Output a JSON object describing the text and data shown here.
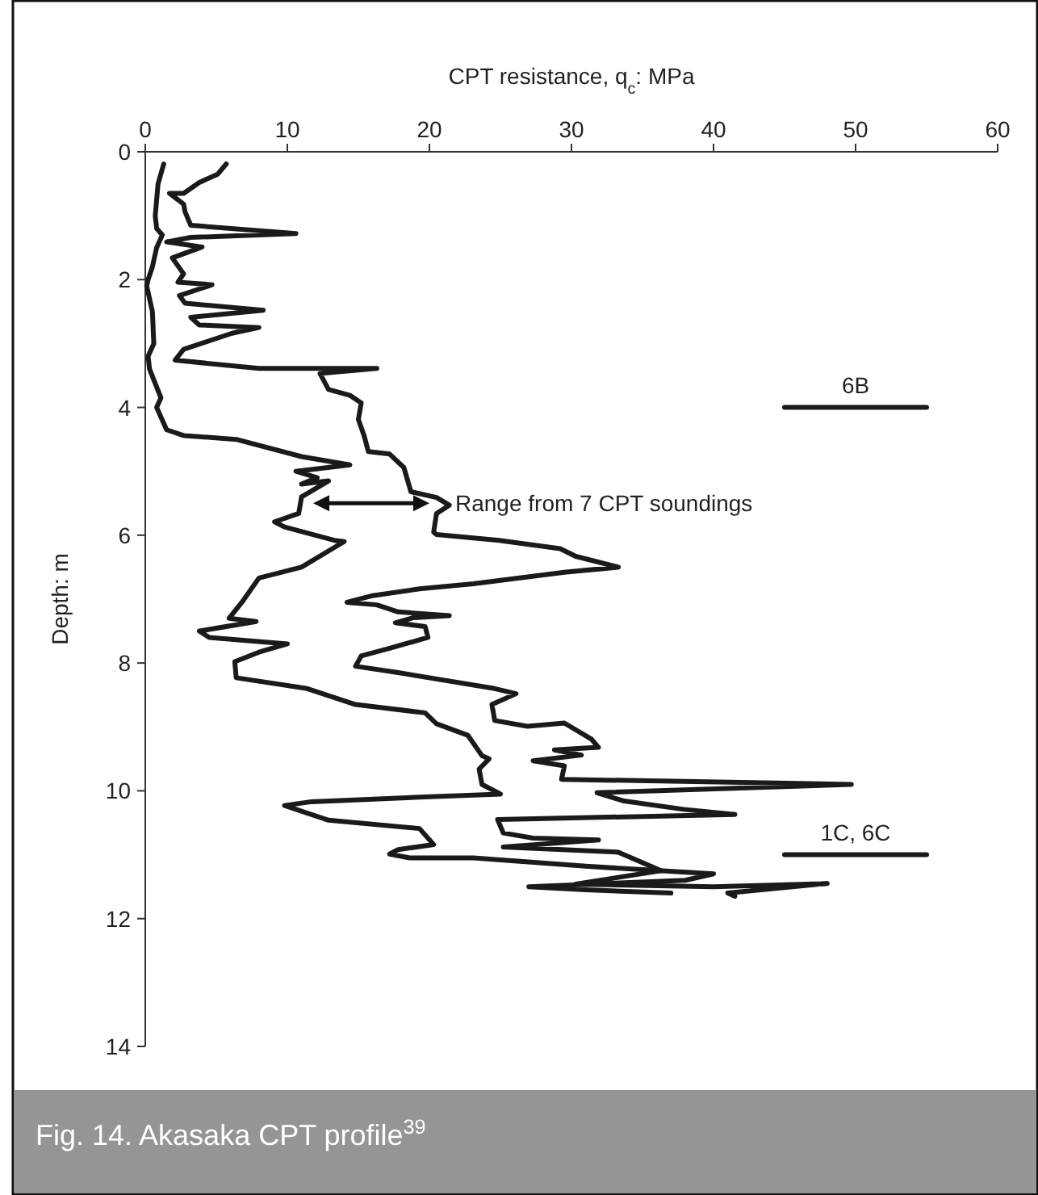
{
  "chart_data": {
    "type": "line",
    "title": "Fig. 14. Akasaka CPT profile$^{39}$",
    "xlabel": "CPT resistance, q$_{c}$: MPa",
    "ylabel": "Depth: m",
    "xlim": [
      0,
      60
    ],
    "xticks": [
      0,
      10,
      20,
      30,
      40,
      50,
      60
    ],
    "ylim": [
      14,
      0
    ],
    "yticks": [
      0,
      2,
      4,
      6,
      8,
      10,
      12,
      14
    ],
    "annotations": [
      {
        "text": "Range from 7 CPT soundings",
        "x": 20,
        "y": 5.5
      }
    ],
    "series": [
      {
        "color": "#1a1a1a",
        "x": [
          1.3,
          0.9,
          0.7,
          0.8,
          1.2,
          0.8,
          0.5,
          0.2,
          0.1,
          0.5,
          0.6,
          0.2,
          0.3,
          1.1,
          0.8,
          1.5,
          2.7,
          6.4,
          11,
          14.4,
          10.6,
          12.1,
          11,
          12.9,
          11,
          10.8,
          9.1,
          9.8,
          13.3,
          14,
          11,
          8,
          6.8,
          5.9,
          7.8,
          3.8,
          4.5,
          10,
          8,
          6.3,
          6.4,
          11.4,
          14.8,
          19.7,
          20.5,
          22.7,
          23.7,
          24.2,
          23.5,
          23.7,
          25,
          19.3,
          11.7,
          9.8,
          12.9,
          19.3,
          20.3,
          17.8,
          17.2,
          18.6,
          23.1,
          31,
          40,
          38,
          27,
          31,
          37
        ],
        "values": [
          0.19,
          0.5,
          1,
          1.2,
          1.3,
          1.5,
          1.8,
          2,
          2.1,
          2.5,
          3,
          3.2,
          3.4,
          3.85,
          4,
          4.35,
          4.44,
          4.5,
          4.77,
          4.9,
          5,
          5.1,
          5.2,
          5.15,
          5.4,
          5.66,
          5.79,
          5.87,
          6.08,
          6.1,
          6.5,
          6.67,
          7.05,
          7.3,
          7.35,
          7.5,
          7.6,
          7.7,
          7.83,
          7.98,
          8.23,
          8.4,
          8.65,
          8.78,
          8.95,
          9.13,
          9.45,
          9.5,
          9.66,
          9.9,
          10.05,
          10.1,
          10.17,
          10.23,
          10.46,
          10.59,
          10.84,
          10.92,
          10.99,
          11.05,
          11.05,
          11.18,
          11.3,
          11.4,
          11.5,
          11.55,
          11.6
        ]
      },
      {
        "color": "#1a1a1a",
        "x": [
          5.7,
          5.1,
          3.8,
          2.7,
          1.7,
          2.7,
          2.8,
          3.2,
          10.6,
          3.2,
          1.5,
          4,
          1.9,
          2.7,
          2.3,
          4.7,
          2.4,
          2.8,
          8.3,
          3.2,
          3.8,
          8,
          6.1,
          2.7,
          2.1,
          8,
          16.3,
          12.3,
          12.9,
          14.4,
          15.2,
          15,
          15.4,
          15.7,
          17.2,
          18.2,
          18.7,
          20.5,
          21.4,
          20.5,
          20.3,
          20.5,
          24.9,
          29.2,
          30.3,
          33.3,
          29.5,
          23.1,
          19.3,
          15.9,
          14.2,
          16.3,
          17.8,
          21.4,
          18.9,
          17.6,
          19.7,
          19.9,
          17.2,
          15.2,
          14.8,
          17.8,
          24.6,
          26.1,
          24.4,
          24.6,
          26.9,
          29.5,
          31.4,
          31.9,
          28.8,
          30.7,
          27.3,
          29.5,
          29.3,
          49.7,
          31.8,
          33.7,
          37.9,
          41.5,
          24.8,
          25.2,
          27.3,
          31.9,
          25.2,
          33.3,
          36.3,
          30.3,
          40,
          48,
          41,
          41.5
        ],
        "values": [
          0.19,
          0.35,
          0.48,
          0.65,
          0.65,
          0.82,
          0.94,
          1.15,
          1.28,
          1.34,
          1.41,
          1.49,
          1.66,
          1.91,
          2.04,
          2.08,
          2.25,
          2.37,
          2.48,
          2.59,
          2.71,
          2.75,
          2.84,
          3.09,
          3.26,
          3.39,
          3.39,
          3.47,
          3.72,
          3.81,
          3.93,
          4.19,
          4.44,
          4.69,
          4.73,
          4.94,
          5.32,
          5.41,
          5.53,
          5.66,
          5.95,
          5.99,
          6.08,
          6.21,
          6.33,
          6.5,
          6.58,
          6.76,
          6.84,
          6.95,
          7.05,
          7.09,
          7.2,
          7.26,
          7.29,
          7.37,
          7.43,
          7.6,
          7.77,
          7.89,
          8.05,
          8.15,
          8.4,
          8.48,
          8.65,
          8.9,
          8.99,
          8.94,
          9.19,
          9.32,
          9.36,
          9.44,
          9.53,
          9.61,
          9.82,
          9.9,
          10.03,
          10.16,
          10.29,
          10.37,
          10.45,
          10.66,
          10.74,
          10.77,
          10.88,
          10.96,
          11.25,
          11.46,
          11.5,
          11.45,
          11.6,
          11.65
        ]
      },
      {
        "name": "6B",
        "color": "#1a1a1a",
        "x": [
          45,
          55
        ],
        "values": [
          4,
          4
        ]
      },
      {
        "name": "1C, 6C",
        "color": "#1a1a1a",
        "x": [
          45,
          55
        ],
        "values": [
          11,
          11
        ]
      }
    ]
  }
}
